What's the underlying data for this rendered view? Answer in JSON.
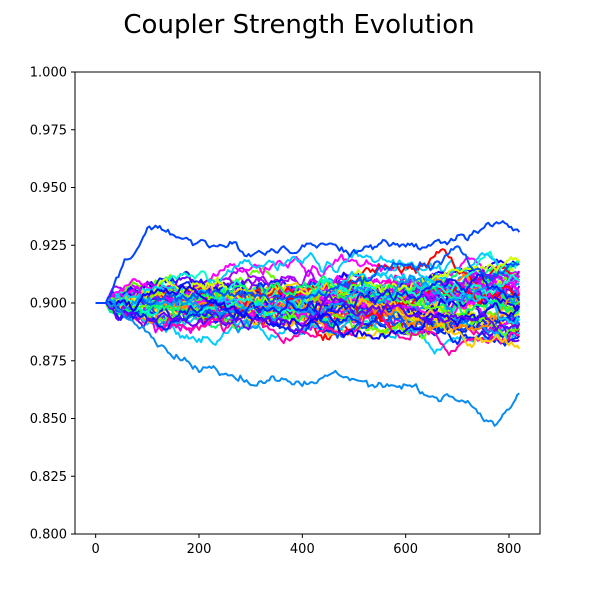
{
  "chart_data": {
    "type": "line",
    "title": "Coupler Strength Evolution",
    "xlabel": "",
    "ylabel": "",
    "xlim": [
      -40,
      860
    ],
    "ylim": [
      0.8,
      1.0
    ],
    "xticks": [
      0,
      200,
      400,
      600,
      800
    ],
    "yticks": [
      0.8,
      0.825,
      0.85,
      0.875,
      0.9,
      0.925,
      0.95,
      0.975,
      1.0
    ],
    "ytick_labels": [
      "0.800",
      "0.825",
      "0.850",
      "0.875",
      "0.900",
      "0.925",
      "0.950",
      "0.975",
      "1.000"
    ],
    "grid": false,
    "legend": "none",
    "series_count": 64,
    "x_start": 0,
    "x_end": 820,
    "initial_value": 0.9,
    "initial_flat_until": 20,
    "final_value_range": [
      0.858,
      0.934
    ],
    "lowest_trace": {
      "values": [
        0.9,
        0.888,
        0.872,
        0.868,
        0.865,
        0.869,
        0.866,
        0.858,
        0.847,
        0.859
      ],
      "x": [
        20,
        100,
        200,
        300,
        400,
        500,
        600,
        700,
        780,
        820
      ]
    },
    "highest_trace": {
      "values": [
        0.9,
        0.931,
        0.928,
        0.921,
        0.927,
        0.924,
        0.923,
        0.929,
        0.933,
        0.932
      ],
      "x": [
        20,
        100,
        200,
        300,
        400,
        500,
        600,
        700,
        780,
        820
      ]
    },
    "colors": [
      "#ff0000",
      "#ff8800",
      "#ffcc00",
      "#ccff00",
      "#66ff00",
      "#00ff66",
      "#00ffcc",
      "#00ccff",
      "#0099ff",
      "#0055ff",
      "#0022ff",
      "#1100ff",
      "#6600ff",
      "#aa00ff",
      "#dd00ff",
      "#ff00ff",
      "#ff00aa"
    ]
  }
}
